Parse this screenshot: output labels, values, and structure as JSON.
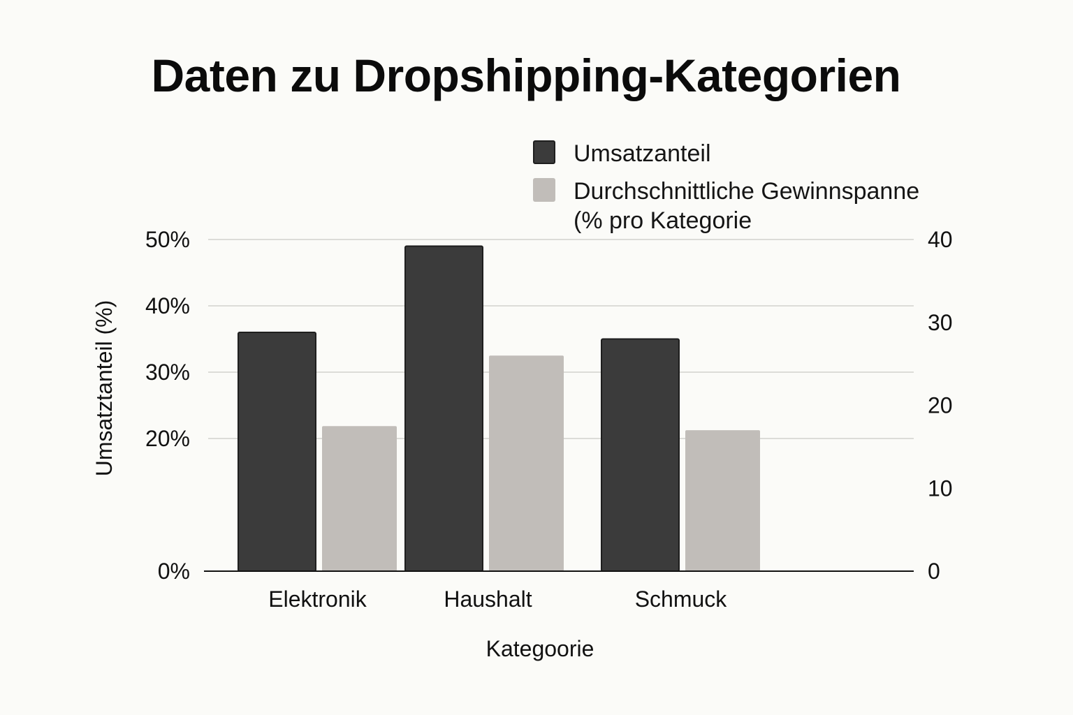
{
  "chart_data": {
    "type": "bar",
    "title": "Daten zu Dropshipping-Kategorien",
    "categories": [
      "Elektronik",
      "Haushalt",
      "Schmuck"
    ],
    "xlabel": "Kategoorie",
    "ylabel": "Umsatztanteil (%)",
    "ylim": [
      0,
      50
    ],
    "y2lim": [
      0,
      40
    ],
    "yticks": [
      "0%",
      "20%",
      "30%",
      "40%",
      "50%"
    ],
    "yticks_values": [
      0,
      20,
      30,
      40,
      50
    ],
    "y2ticks": [
      "0",
      "10",
      "20",
      "30",
      "40"
    ],
    "y2ticks_values": [
      0,
      10,
      20,
      30,
      40
    ],
    "legend_position": "top-right",
    "grid": true,
    "series": [
      {
        "name": "Umsatzanteil",
        "axis": "left",
        "color": "#3b3b3b",
        "values": [
          36,
          49,
          35
        ]
      },
      {
        "name": "Durchschnittliche Gewinnspanne\n(% pro Kategorie",
        "axis": "right",
        "color": "#c1bdb9",
        "values": [
          17.5,
          26,
          17
        ]
      }
    ]
  }
}
